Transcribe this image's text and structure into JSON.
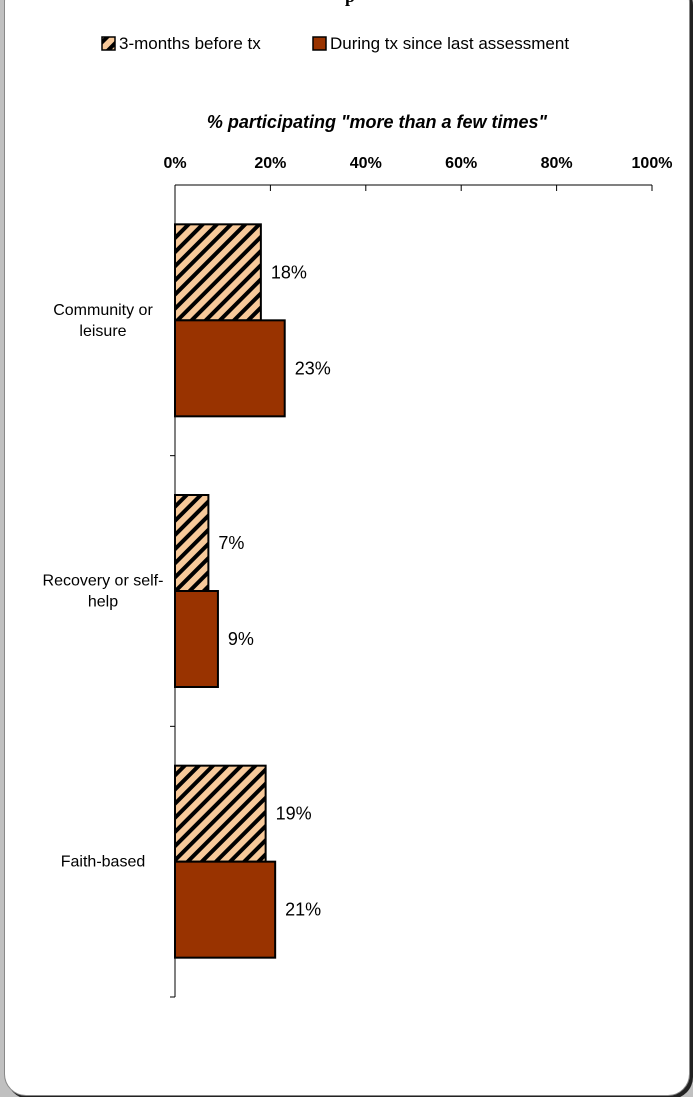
{
  "chart_data": {
    "type": "bar",
    "orientation": "horizontal",
    "title": "% participating \"more than a few times\"",
    "title_fragment_top": "p",
    "categories": [
      "Community or leisure",
      "Recovery or self-help",
      "Faith-based"
    ],
    "category_lines": [
      [
        "Community or",
        "leisure"
      ],
      [
        "Recovery or self-",
        "help"
      ],
      [
        "Faith-based"
      ]
    ],
    "series": [
      {
        "name": "3-months before tx",
        "values": [
          18,
          7,
          19
        ],
        "pattern": "hatched"
      },
      {
        "name": "During tx since last assessment",
        "values": [
          23,
          9,
          21
        ],
        "pattern": "solid"
      }
    ],
    "data_labels": [
      [
        "18%",
        "7%",
        "19%"
      ],
      [
        "23%",
        "9%",
        "21%"
      ]
    ],
    "xlim": [
      0,
      100
    ],
    "xticks": [
      0,
      20,
      40,
      60,
      80,
      100
    ],
    "xtick_labels": [
      "0%",
      "20%",
      "40%",
      "60%",
      "80%",
      "100%"
    ],
    "legend_position": "top",
    "grid": false,
    "colors": {
      "hatch_fill": "#f7c99a",
      "hatch_line": "#000000",
      "solid": "#993300",
      "background": "#c0c0c0",
      "panel": "#ffffff"
    }
  }
}
